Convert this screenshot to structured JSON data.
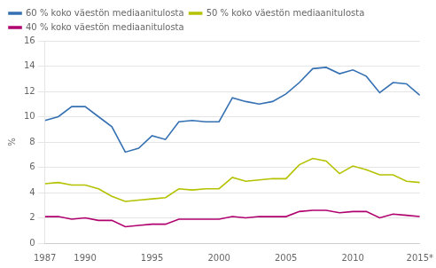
{
  "chart_data": {
    "type": "line",
    "ylabel": "%",
    "x": [
      1987,
      1988,
      1989,
      1990,
      1991,
      1992,
      1993,
      1994,
      1995,
      1996,
      1997,
      1998,
      1999,
      2000,
      2001,
      2002,
      2003,
      2004,
      2005,
      2006,
      2007,
      2008,
      2009,
      2010,
      2011,
      2012,
      2013,
      2014,
      2015
    ],
    "series": [
      {
        "name": "60 % koko väestön mediaanitulosta",
        "color": "#3470b2",
        "values": [
          9.7,
          10.0,
          10.8,
          10.8,
          10.0,
          9.2,
          7.2,
          7.5,
          8.5,
          8.2,
          9.6,
          9.7,
          9.6,
          9.6,
          11.5,
          11.2,
          11.0,
          11.2,
          11.8,
          12.7,
          13.8,
          13.9,
          13.4,
          13.7,
          13.2,
          11.9,
          12.7,
          12.6,
          11.7
        ]
      },
      {
        "name": "50 % koko väestön mediaanitulosta",
        "color": "#b5c200",
        "values": [
          4.7,
          4.8,
          4.6,
          4.6,
          4.3,
          3.7,
          3.3,
          3.4,
          3.5,
          3.6,
          4.3,
          4.2,
          4.3,
          4.3,
          5.2,
          4.9,
          5.0,
          5.1,
          5.1,
          6.2,
          6.7,
          6.5,
          5.5,
          6.1,
          5.8,
          5.4,
          5.4,
          4.9,
          4.8
        ]
      },
      {
        "name": "40 % koko väestön mediaanitulosta",
        "color": "#b0006e",
        "values": [
          2.1,
          2.1,
          1.9,
          2.0,
          1.8,
          1.8,
          1.3,
          1.4,
          1.5,
          1.5,
          1.9,
          1.9,
          1.9,
          1.9,
          2.1,
          2.0,
          2.1,
          2.1,
          2.1,
          2.5,
          2.6,
          2.6,
          2.4,
          2.5,
          2.5,
          2.0,
          2.3,
          2.2,
          2.1
        ]
      }
    ],
    "xlim": [
      1987,
      2015
    ],
    "xticks": [
      1987,
      1990,
      1995,
      2000,
      2005,
      2010,
      {
        "value": 2015,
        "label": "2015*"
      }
    ],
    "ylim": [
      0,
      16
    ],
    "yticks": [
      0,
      2,
      4,
      6,
      8,
      10,
      12,
      14,
      16
    ],
    "grid": "y",
    "legend": "upper left"
  }
}
